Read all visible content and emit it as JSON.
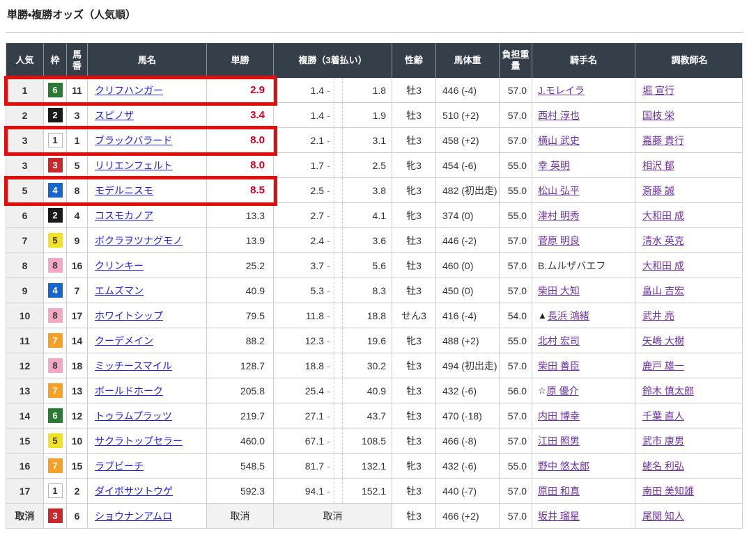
{
  "page": {
    "title": "単勝・複勝オッズ（人気順）"
  },
  "labels": {
    "cancel": "取消"
  },
  "colors": {
    "header_bg": "#353f4a",
    "highlight_red": "#e60c0c",
    "odds_red": "#cc0022",
    "link_blue": "#2323dd",
    "link_purple": "#6e32a0"
  },
  "table": {
    "headers": {
      "rank": "人気",
      "bracket": "枠",
      "number": "馬番",
      "name": "馬名",
      "win": "単勝",
      "place": "複勝（3着払い）",
      "sex_age": "性齢",
      "weight": "馬体重",
      "carried": "負担重量",
      "jockey": "騎手名",
      "trainer": "調教師名"
    },
    "rows": [
      {
        "rank": "1",
        "bracket": "6",
        "number": "11",
        "name": "クリフハンガー",
        "win": "2.9",
        "win_red": true,
        "place_low": "1.4",
        "place_high": "1.8",
        "sex_age": "牡3",
        "weight": "446 (-4)",
        "carried": "57.0",
        "jockey_prefix": "",
        "jockey": "J.モレイラ",
        "jockey_link": true,
        "trainer": "堀 宣行",
        "highlight": true,
        "cancelled": false
      },
      {
        "rank": "2",
        "bracket": "2",
        "number": "3",
        "name": "スピノザ",
        "win": "3.4",
        "win_red": true,
        "place_low": "1.4",
        "place_high": "1.9",
        "sex_age": "牡3",
        "weight": "510 (+2)",
        "carried": "57.0",
        "jockey_prefix": "",
        "jockey": "西村 淳也",
        "jockey_link": true,
        "trainer": "国枝 栄",
        "highlight": false,
        "cancelled": false
      },
      {
        "rank": "3",
        "bracket": "1",
        "number": "1",
        "name": "ブラックバラード",
        "win": "8.0",
        "win_red": true,
        "place_low": "2.1",
        "place_high": "3.1",
        "sex_age": "牡3",
        "weight": "458 (+2)",
        "carried": "57.0",
        "jockey_prefix": "",
        "jockey": "横山 武史",
        "jockey_link": true,
        "trainer": "嘉藤 貴行",
        "highlight": true,
        "cancelled": false
      },
      {
        "rank": "3",
        "bracket": "3",
        "number": "5",
        "name": "リリエンフェルト",
        "win": "8.0",
        "win_red": true,
        "place_low": "1.7",
        "place_high": "2.5",
        "sex_age": "牝3",
        "weight": "454 (-6)",
        "carried": "55.0",
        "jockey_prefix": "",
        "jockey": "幸 英明",
        "jockey_link": true,
        "trainer": "相沢 郁",
        "highlight": false,
        "cancelled": false
      },
      {
        "rank": "5",
        "bracket": "4",
        "number": "8",
        "name": "モデルニスモ",
        "win": "8.5",
        "win_red": true,
        "place_low": "2.5",
        "place_high": "3.8",
        "sex_age": "牝3",
        "weight": "482 (初出走)",
        "carried": "55.0",
        "jockey_prefix": "",
        "jockey": "松山 弘平",
        "jockey_link": true,
        "trainer": "斎藤 誠",
        "highlight": true,
        "cancelled": false
      },
      {
        "rank": "6",
        "bracket": "2",
        "number": "4",
        "name": "コスモカノア",
        "win": "13.3",
        "win_red": false,
        "place_low": "2.7",
        "place_high": "4.1",
        "sex_age": "牝3",
        "weight": "374 (0)",
        "carried": "55.0",
        "jockey_prefix": "",
        "jockey": "津村 明秀",
        "jockey_link": true,
        "trainer": "大和田 成",
        "highlight": false,
        "cancelled": false
      },
      {
        "rank": "7",
        "bracket": "5",
        "number": "9",
        "name": "ボクラヲツナグモノ",
        "win": "13.9",
        "win_red": false,
        "place_low": "2.4",
        "place_high": "3.6",
        "sex_age": "牡3",
        "weight": "446 (-2)",
        "carried": "57.0",
        "jockey_prefix": "",
        "jockey": "菅原 明良",
        "jockey_link": true,
        "trainer": "清水 英克",
        "highlight": false,
        "cancelled": false
      },
      {
        "rank": "8",
        "bracket": "8",
        "number": "16",
        "name": "クリンキー",
        "win": "25.2",
        "win_red": false,
        "place_low": "3.7",
        "place_high": "5.6",
        "sex_age": "牡3",
        "weight": "460 (0)",
        "carried": "57.0",
        "jockey_prefix": "",
        "jockey": "B.ムルザバエフ",
        "jockey_link": false,
        "trainer": "大和田 成",
        "highlight": false,
        "cancelled": false
      },
      {
        "rank": "9",
        "bracket": "4",
        "number": "7",
        "name": "エムズマン",
        "win": "40.9",
        "win_red": false,
        "place_low": "5.3",
        "place_high": "8.3",
        "sex_age": "牡3",
        "weight": "450 (0)",
        "carried": "57.0",
        "jockey_prefix": "",
        "jockey": "柴田 大知",
        "jockey_link": true,
        "trainer": "畠山 吉宏",
        "highlight": false,
        "cancelled": false
      },
      {
        "rank": "10",
        "bracket": "8",
        "number": "17",
        "name": "ホワイトシップ",
        "win": "79.5",
        "win_red": false,
        "place_low": "11.8",
        "place_high": "18.8",
        "sex_age": "せん3",
        "weight": "416 (-4)",
        "carried": "54.0",
        "jockey_prefix": "▲",
        "jockey": "長浜 鴻緒",
        "jockey_link": true,
        "trainer": "武井 亮",
        "highlight": false,
        "cancelled": false
      },
      {
        "rank": "11",
        "bracket": "7",
        "number": "14",
        "name": "クーデメイン",
        "win": "88.2",
        "win_red": false,
        "place_low": "12.3",
        "place_high": "19.6",
        "sex_age": "牝3",
        "weight": "488 (+2)",
        "carried": "55.0",
        "jockey_prefix": "",
        "jockey": "北村 宏司",
        "jockey_link": true,
        "trainer": "矢嶋 大樹",
        "highlight": false,
        "cancelled": false
      },
      {
        "rank": "12",
        "bracket": "8",
        "number": "18",
        "name": "ミッチースマイル",
        "win": "128.7",
        "win_red": false,
        "place_low": "18.8",
        "place_high": "30.2",
        "sex_age": "牡3",
        "weight": "494 (初出走)",
        "carried": "57.0",
        "jockey_prefix": "",
        "jockey": "柴田 善臣",
        "jockey_link": true,
        "trainer": "鹿戸 雄一",
        "highlight": false,
        "cancelled": false
      },
      {
        "rank": "13",
        "bracket": "7",
        "number": "13",
        "name": "ボールドホーク",
        "win": "205.8",
        "win_red": false,
        "place_low": "25.4",
        "place_high": "40.9",
        "sex_age": "牡3",
        "weight": "432 (-6)",
        "carried": "56.0",
        "jockey_prefix": "☆",
        "jockey": "原 優介",
        "jockey_link": true,
        "trainer": "鈴木 慎太郎",
        "highlight": false,
        "cancelled": false
      },
      {
        "rank": "14",
        "bracket": "6",
        "number": "12",
        "name": "トゥラムプラッツ",
        "win": "219.7",
        "win_red": false,
        "place_low": "27.1",
        "place_high": "43.7",
        "sex_age": "牡3",
        "weight": "470 (-18)",
        "carried": "57.0",
        "jockey_prefix": "",
        "jockey": "内田 博幸",
        "jockey_link": true,
        "trainer": "千葉 直人",
        "highlight": false,
        "cancelled": false
      },
      {
        "rank": "15",
        "bracket": "5",
        "number": "10",
        "name": "サクラトップセラー",
        "win": "460.0",
        "win_red": false,
        "place_low": "67.1",
        "place_high": "108.5",
        "sex_age": "牡3",
        "weight": "466 (-8)",
        "carried": "57.0",
        "jockey_prefix": "",
        "jockey": "江田 照男",
        "jockey_link": true,
        "trainer": "武市 康男",
        "highlight": false,
        "cancelled": false
      },
      {
        "rank": "16",
        "bracket": "7",
        "number": "15",
        "name": "ラブビーチ",
        "win": "548.5",
        "win_red": false,
        "place_low": "81.7",
        "place_high": "132.1",
        "sex_age": "牝3",
        "weight": "432 (-6)",
        "carried": "55.0",
        "jockey_prefix": "",
        "jockey": "野中 悠太郎",
        "jockey_link": true,
        "trainer": "蛯名 利弘",
        "highlight": false,
        "cancelled": false
      },
      {
        "rank": "17",
        "bracket": "1",
        "number": "2",
        "name": "ダイボサツトウゲ",
        "win": "592.3",
        "win_red": false,
        "place_low": "94.1",
        "place_high": "152.1",
        "sex_age": "牡3",
        "weight": "440 (-7)",
        "carried": "57.0",
        "jockey_prefix": "",
        "jockey": "原田 和真",
        "jockey_link": true,
        "trainer": "南田 美知雄",
        "highlight": false,
        "cancelled": false
      },
      {
        "rank": "取消",
        "bracket": "3",
        "number": "6",
        "name": "ショウナンアムロ",
        "win": "",
        "win_red": false,
        "place_low": "",
        "place_high": "",
        "sex_age": "牡3",
        "weight": "466 (+2)",
        "carried": "57.0",
        "jockey_prefix": "",
        "jockey": "坂井 瑠星",
        "jockey_link": true,
        "trainer": "尾関 知人",
        "highlight": false,
        "cancelled": true
      }
    ]
  }
}
